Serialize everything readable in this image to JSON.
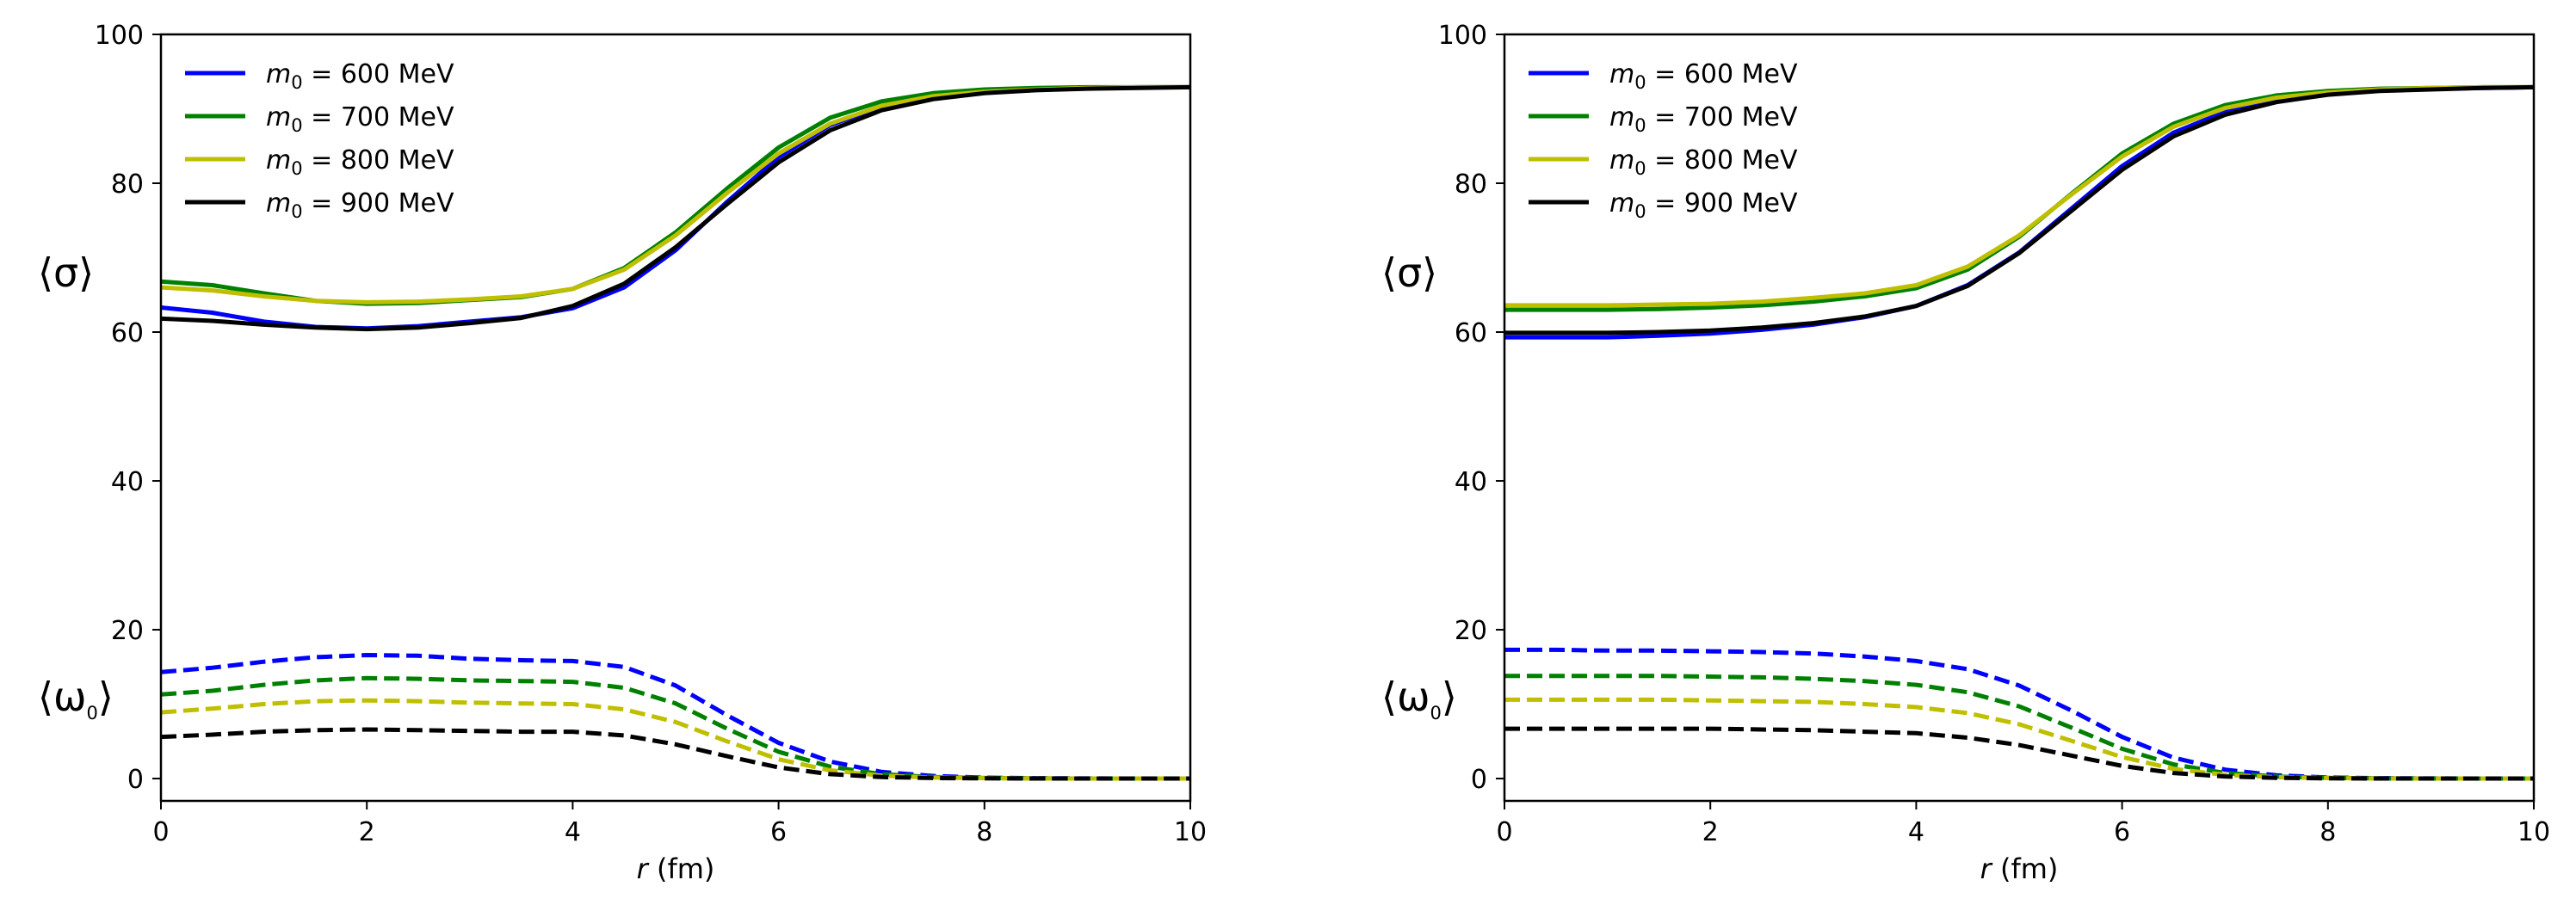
{
  "chart_data": [
    {
      "type": "line",
      "panel": "left",
      "xlabel_var": "r",
      "xlabel_unit": " (fm)",
      "xlim": [
        0,
        10
      ],
      "ylim": [
        -3,
        100
      ],
      "xticks": [
        0,
        2,
        4,
        6,
        8,
        10
      ],
      "yticks": [
        0,
        20,
        40,
        60,
        80,
        100
      ],
      "sigma_label": "⟨σ⟩",
      "omega_label_main": "⟨ω",
      "omega_label_sub": "0",
      "omega_label_close": "⟩",
      "legend": {
        "placement": "top-left",
        "entries": [
          {
            "var": "m",
            "sub": "0",
            "text": " = 600 MeV",
            "color": "#0000ff"
          },
          {
            "var": "m",
            "sub": "0",
            "text": " = 700 MeV",
            "color": "#008000"
          },
          {
            "var": "m",
            "sub": "0",
            "text": " = 800 MeV",
            "color": "#bfbf00"
          },
          {
            "var": "m",
            "sub": "0",
            "text": " = 900 MeV",
            "color": "#000000"
          }
        ]
      },
      "x": [
        0,
        0.5,
        1,
        1.5,
        2,
        2.5,
        3,
        3.5,
        4,
        4.5,
        5,
        5.5,
        6,
        6.5,
        7,
        7.5,
        8,
        8.5,
        9,
        9.5,
        10
      ],
      "series": [
        {
          "name": "sigma m0=600",
          "kind": "sigma",
          "color": "#0000ff",
          "style": "solid",
          "values": [
            63.3,
            62.6,
            61.4,
            60.7,
            60.5,
            60.8,
            61.4,
            62.0,
            63.2,
            66.0,
            71.0,
            77.5,
            83.5,
            87.8,
            90.3,
            91.6,
            92.3,
            92.6,
            92.8,
            92.9,
            92.9
          ]
        },
        {
          "name": "sigma m0=700",
          "kind": "sigma",
          "color": "#008000",
          "style": "solid",
          "values": [
            66.8,
            66.3,
            65.2,
            64.2,
            63.8,
            63.9,
            64.3,
            64.7,
            65.8,
            68.6,
            73.4,
            79.3,
            84.8,
            88.8,
            91.0,
            92.1,
            92.6,
            92.8,
            92.9,
            92.9,
            92.9
          ]
        },
        {
          "name": "sigma m0=800",
          "kind": "sigma",
          "color": "#bfbf00",
          "style": "solid",
          "values": [
            66.0,
            65.6,
            64.8,
            64.2,
            64.0,
            64.1,
            64.4,
            64.8,
            65.8,
            68.4,
            73.0,
            78.7,
            84.0,
            88.0,
            90.4,
            91.7,
            92.3,
            92.6,
            92.8,
            92.9,
            92.9
          ]
        },
        {
          "name": "sigma m0=900",
          "kind": "sigma",
          "color": "#000000",
          "style": "solid",
          "values": [
            61.8,
            61.5,
            61.0,
            60.6,
            60.4,
            60.6,
            61.2,
            61.9,
            63.5,
            66.5,
            71.4,
            77.2,
            82.8,
            87.1,
            89.8,
            91.3,
            92.1,
            92.5,
            92.7,
            92.8,
            92.9
          ]
        },
        {
          "name": "omega0 m0=600",
          "kind": "omega",
          "color": "#0000ff",
          "style": "dashed",
          "values": [
            14.3,
            14.9,
            15.7,
            16.3,
            16.6,
            16.5,
            16.1,
            15.9,
            15.8,
            15.0,
            12.5,
            8.5,
            4.8,
            2.3,
            0.9,
            0.35,
            0.12,
            0.05,
            0.02,
            0.01,
            0.0
          ]
        },
        {
          "name": "omega0 m0=700",
          "kind": "omega",
          "color": "#008000",
          "style": "dashed",
          "values": [
            11.3,
            11.8,
            12.6,
            13.2,
            13.5,
            13.4,
            13.2,
            13.1,
            13.0,
            12.2,
            10.1,
            6.7,
            3.6,
            1.6,
            0.6,
            0.2,
            0.07,
            0.03,
            0.01,
            0.0,
            0.0
          ]
        },
        {
          "name": "omega0 m0=800",
          "kind": "omega",
          "color": "#bfbf00",
          "style": "dashed",
          "values": [
            8.9,
            9.4,
            10.0,
            10.4,
            10.5,
            10.4,
            10.2,
            10.1,
            10.0,
            9.3,
            7.6,
            5.0,
            2.6,
            1.1,
            0.4,
            0.13,
            0.05,
            0.02,
            0.01,
            0.0,
            0.0
          ]
        },
        {
          "name": "omega0 m0=900",
          "kind": "omega",
          "color": "#000000",
          "style": "dashed",
          "values": [
            5.6,
            5.9,
            6.3,
            6.5,
            6.6,
            6.5,
            6.4,
            6.3,
            6.3,
            5.8,
            4.6,
            3.0,
            1.5,
            0.6,
            0.2,
            0.07,
            0.03,
            0.01,
            0.0,
            0.0,
            0.0
          ]
        }
      ]
    },
    {
      "type": "line",
      "panel": "right",
      "xlabel_var": "r",
      "xlabel_unit": " (fm)",
      "xlim": [
        0,
        10
      ],
      "ylim": [
        -3,
        100
      ],
      "xticks": [
        0,
        2,
        4,
        6,
        8,
        10
      ],
      "yticks": [
        0,
        20,
        40,
        60,
        80,
        100
      ],
      "sigma_label": "⟨σ⟩",
      "omega_label_main": "⟨ω",
      "omega_label_sub": "0",
      "omega_label_close": "⟩",
      "legend": {
        "placement": "top-left",
        "entries": [
          {
            "var": "m",
            "sub": "0",
            "text": " = 600 MeV",
            "color": "#0000ff"
          },
          {
            "var": "m",
            "sub": "0",
            "text": " = 700 MeV",
            "color": "#008000"
          },
          {
            "var": "m",
            "sub": "0",
            "text": " = 800 MeV",
            "color": "#bfbf00"
          },
          {
            "var": "m",
            "sub": "0",
            "text": " = 900 MeV",
            "color": "#000000"
          }
        ]
      },
      "x": [
        0,
        0.5,
        1,
        1.5,
        2,
        2.5,
        3,
        3.5,
        4,
        4.5,
        5,
        5.5,
        6,
        6.5,
        7,
        7.5,
        8,
        8.5,
        9,
        9.5,
        10
      ],
      "series": [
        {
          "name": "sigma m0=600",
          "kind": "sigma",
          "color": "#0000ff",
          "style": "solid",
          "values": [
            59.3,
            59.3,
            59.3,
            59.5,
            59.8,
            60.3,
            61.0,
            62.0,
            63.5,
            66.3,
            70.7,
            76.5,
            82.3,
            86.8,
            89.6,
            91.2,
            92.1,
            92.5,
            92.7,
            92.8,
            92.9
          ]
        },
        {
          "name": "sigma m0=700",
          "kind": "sigma",
          "color": "#008000",
          "style": "solid",
          "values": [
            63.0,
            63.0,
            63.0,
            63.1,
            63.3,
            63.6,
            64.1,
            64.8,
            65.9,
            68.4,
            72.8,
            78.5,
            84.0,
            88.0,
            90.5,
            91.8,
            92.4,
            92.7,
            92.8,
            92.9,
            92.9
          ]
        },
        {
          "name": "sigma m0=800",
          "kind": "sigma",
          "color": "#bfbf00",
          "style": "solid",
          "values": [
            63.6,
            63.6,
            63.6,
            63.7,
            63.8,
            64.1,
            64.6,
            65.2,
            66.3,
            68.8,
            73.0,
            78.4,
            83.6,
            87.6,
            90.1,
            91.5,
            92.2,
            92.6,
            92.8,
            92.9,
            92.9
          ]
        },
        {
          "name": "sigma m0=900",
          "kind": "sigma",
          "color": "#000000",
          "style": "solid",
          "values": [
            59.9,
            59.9,
            59.9,
            60.0,
            60.2,
            60.6,
            61.2,
            62.1,
            63.5,
            66.2,
            70.6,
            76.2,
            81.8,
            86.3,
            89.2,
            90.9,
            91.9,
            92.4,
            92.6,
            92.8,
            92.9
          ]
        },
        {
          "name": "omega0 m0=600",
          "kind": "omega",
          "color": "#0000ff",
          "style": "dashed",
          "values": [
            17.3,
            17.3,
            17.2,
            17.2,
            17.1,
            17.0,
            16.8,
            16.4,
            15.8,
            14.7,
            12.5,
            9.2,
            5.6,
            2.8,
            1.2,
            0.45,
            0.15,
            0.05,
            0.02,
            0.01,
            0.0
          ]
        },
        {
          "name": "omega0 m0=700",
          "kind": "omega",
          "color": "#008000",
          "style": "dashed",
          "values": [
            13.8,
            13.8,
            13.8,
            13.8,
            13.7,
            13.6,
            13.4,
            13.1,
            12.6,
            11.6,
            9.7,
            6.9,
            4.0,
            1.9,
            0.75,
            0.27,
            0.09,
            0.03,
            0.01,
            0.0,
            0.0
          ]
        },
        {
          "name": "omega0 m0=800",
          "kind": "omega",
          "color": "#bfbf00",
          "style": "dashed",
          "values": [
            10.6,
            10.6,
            10.6,
            10.6,
            10.5,
            10.4,
            10.3,
            10.0,
            9.6,
            8.8,
            7.3,
            5.1,
            2.9,
            1.3,
            0.5,
            0.18,
            0.06,
            0.02,
            0.01,
            0.0,
            0.0
          ]
        },
        {
          "name": "omega0 m0=900",
          "kind": "omega",
          "color": "#000000",
          "style": "dashed",
          "values": [
            6.7,
            6.7,
            6.7,
            6.7,
            6.7,
            6.6,
            6.5,
            6.3,
            6.1,
            5.5,
            4.5,
            3.1,
            1.7,
            0.75,
            0.28,
            0.1,
            0.03,
            0.01,
            0.0,
            0.0,
            0.0
          ]
        }
      ]
    }
  ]
}
